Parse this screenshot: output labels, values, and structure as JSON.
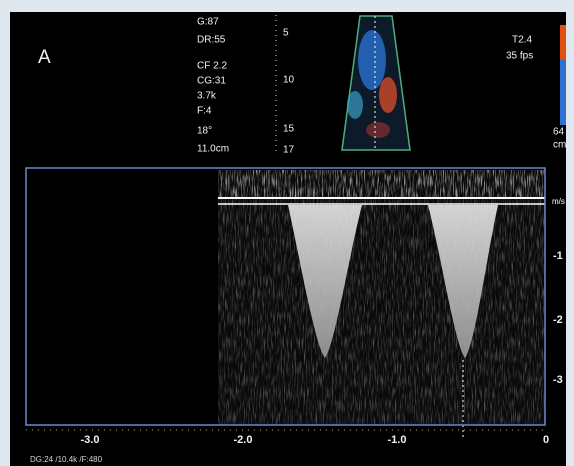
{
  "panel_label": "A",
  "settings": [
    "G:87",
    "DR:55",
    "CF 2.2",
    "CG:31",
    "3.7k",
    "F:4",
    "18°",
    "11.0cm"
  ],
  "depth_scale": [
    "5",
    "10",
    "15",
    "17"
  ],
  "right_settings": [
    "T2.4",
    "35 fps"
  ],
  "color_scale": [
    "64",
    "cm"
  ],
  "velocity_axis": {
    "unit": "m/s",
    "ticks": [
      "-1",
      "-2",
      "-3"
    ]
  },
  "time_axis": {
    "ticks": [
      "-3.0",
      "-2.0",
      "-1.0",
      "0"
    ]
  },
  "footer": "DG:24  /10.4k  /F:480"
}
